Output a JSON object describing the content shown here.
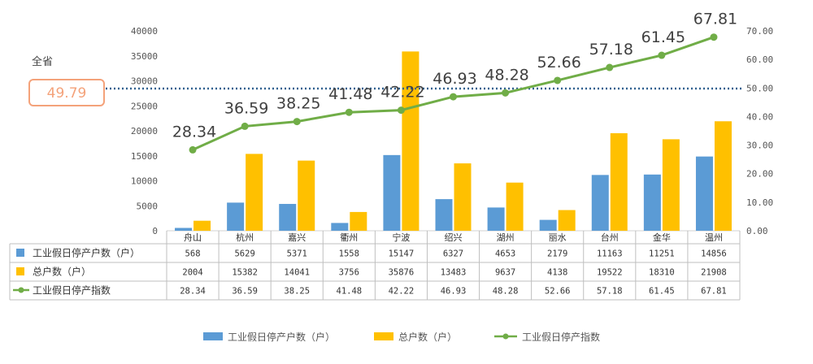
{
  "chart_data": {
    "type": "bar",
    "categories": [
      "舟山",
      "杭州",
      "嘉兴",
      "衢州",
      "宁波",
      "绍兴",
      "湖州",
      "丽水",
      "台州",
      "金华",
      "温州"
    ],
    "series": [
      {
        "name": "工业假日停产户数（户）",
        "type": "bar",
        "axis": "left",
        "color": "#5b9bd5",
        "values": [
          568,
          5629,
          5371,
          1558,
          15147,
          6327,
          4653,
          2179,
          11163,
          11251,
          14856
        ]
      },
      {
        "name": "总户数（户）",
        "type": "bar",
        "axis": "left",
        "color": "#ffc000",
        "values": [
          2004,
          15382,
          14041,
          3756,
          35876,
          13483,
          9637,
          4138,
          19522,
          18310,
          21908
        ]
      },
      {
        "name": "工业假日停产指数",
        "type": "line",
        "axis": "right",
        "color": "#70ad47",
        "values": [
          28.34,
          36.59,
          38.25,
          41.48,
          42.22,
          46.93,
          48.28,
          52.66,
          57.18,
          61.45,
          67.81
        ],
        "labels": [
          "28.34",
          "36.59",
          "38.25",
          "41.48",
          "42.22",
          "46.93",
          "48.28",
          "52.66",
          "57.18",
          "61.45",
          "67.81"
        ]
      }
    ],
    "y_left": {
      "ylim": [
        0,
        40000
      ],
      "ticks": [
        "0",
        "5000",
        "10000",
        "15000",
        "20000",
        "25000",
        "30000",
        "35000",
        "40000"
      ]
    },
    "y_right": {
      "ylim": [
        0,
        70
      ],
      "ticks": [
        "0.00",
        "10.00",
        "20.00",
        "30.00",
        "40.00",
        "50.00",
        "60.00",
        "70.00"
      ]
    },
    "reference_line": {
      "label": "全省",
      "value": 49.79,
      "value_text": "49.79",
      "axis": "right",
      "color": "#2e5f8f",
      "box_color": "#f4a27a"
    },
    "table": {
      "rows": [
        {
          "label": "工业假日停产户数（户）",
          "cells": [
            "568",
            "5629",
            "5371",
            "1558",
            "15147",
            "6327",
            "4653",
            "2179",
            "11163",
            "11251",
            "14856"
          ]
        },
        {
          "label": "总户数（户）",
          "cells": [
            "2004",
            "15382",
            "14041",
            "3756",
            "35876",
            "13483",
            "9637",
            "4138",
            "19522",
            "18310",
            "21908"
          ]
        },
        {
          "label": "工业假日停产指数",
          "cells": [
            "28.34",
            "36.59",
            "38.25",
            "41.48",
            "42.22",
            "46.93",
            "48.28",
            "52.66",
            "57.18",
            "61.45",
            "67.81"
          ]
        }
      ]
    },
    "legend": {
      "position": "bottom",
      "items": [
        {
          "name": "工业假日停产户数（户）",
          "color": "#5b9bd5",
          "kind": "bar"
        },
        {
          "name": "总户数（户）",
          "color": "#ffc000",
          "kind": "bar"
        },
        {
          "name": "工业假日停产指数",
          "color": "#70ad47",
          "kind": "line"
        }
      ]
    },
    "grid": false
  }
}
